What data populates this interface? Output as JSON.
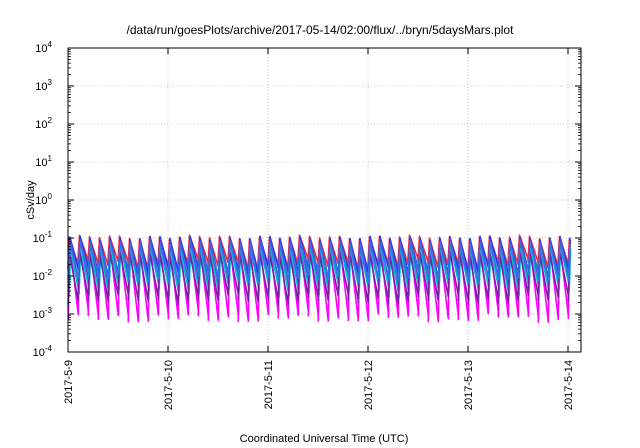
{
  "chart_data": {
    "type": "line",
    "title": "/data/run/goesPlots/archive/2017-05-14/02:00/flux/../bryn/5daysMars.plot",
    "xlabel": "Coordinated Universal Time (UTC)",
    "ylabel": "cSv/day",
    "y_scale": "log",
    "ylim": [
      0.0001,
      10000
    ],
    "y_ticks": [
      {
        "base": "10",
        "exp": "-4",
        "value": 0.0001
      },
      {
        "base": "10",
        "exp": "-3",
        "value": 0.001
      },
      {
        "base": "10",
        "exp": "-2",
        "value": 0.01
      },
      {
        "base": "10",
        "exp": "-1",
        "value": 0.1
      },
      {
        "base": "10",
        "exp": "0",
        "value": 1
      },
      {
        "base": "10",
        "exp": "1",
        "value": 10
      },
      {
        "base": "10",
        "exp": "2",
        "value": 100
      },
      {
        "base": "10",
        "exp": "3",
        "value": 1000
      },
      {
        "base": "10",
        "exp": "4",
        "value": 10000
      }
    ],
    "x_ticks": [
      "2017-5-9",
      "2017-5-10",
      "2017-5-11",
      "2017-5-12",
      "2017-5-13",
      "2017-5-14"
    ],
    "xlim": [
      "2017-05-09T00:00",
      "2017-05-14T02:00"
    ],
    "grid": true,
    "legend": "none",
    "pattern": "repeating sawtooth: sharp rise then decay, about every 2.4 hours",
    "cycle_hours": 2.4,
    "series": [
      {
        "color": "#ff2a2a",
        "peak": 0.105,
        "trough": 0.02
      },
      {
        "color": "#ff00ff",
        "peak": 0.07,
        "trough": 0.00085
      },
      {
        "color": "#1e3cff",
        "peak": 0.1,
        "trough": 0.012
      },
      {
        "color": "#5b3fd9",
        "peak": 0.085,
        "trough": 0.006
      },
      {
        "color": "#00bcd4",
        "peak": 0.05,
        "trough": 0.004
      },
      {
        "color": "#7b1fa2",
        "peak": 0.04,
        "trough": 0.0025
      },
      {
        "color": "#3a6fe0",
        "peak": 0.075,
        "trough": 0.009
      }
    ]
  }
}
